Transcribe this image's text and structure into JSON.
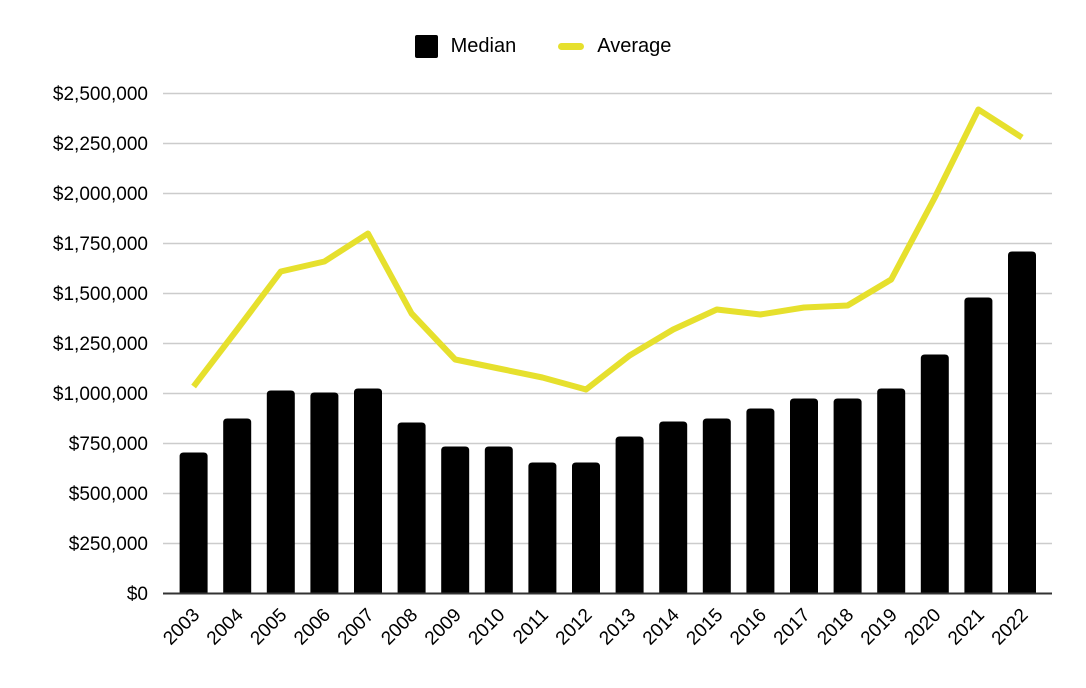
{
  "legend": {
    "items": [
      {
        "label": "Median",
        "marker": "square",
        "color": "#000000"
      },
      {
        "label": "Average",
        "marker": "dash",
        "color": "#e6e02d"
      }
    ]
  },
  "colors": {
    "bar": "#000000",
    "line": "#e6e02d",
    "grid": "#cccccc",
    "axis": "#333333",
    "text": "#000000",
    "background": "#ffffff"
  },
  "chart_data": {
    "type": "bar",
    "subtype": "combo-bar-line",
    "title": "",
    "xlabel": "",
    "ylabel": "",
    "ylim": [
      0,
      2500000
    ],
    "grid": true,
    "legend_position": "top-center",
    "categories": [
      "2003",
      "2004",
      "2005",
      "2006",
      "2007",
      "2008",
      "2009",
      "2010",
      "2011",
      "2012",
      "2013",
      "2014",
      "2015",
      "2016",
      "2017",
      "2018",
      "2019",
      "2020",
      "2021",
      "2022"
    ],
    "series": [
      {
        "name": "Median",
        "type": "bar",
        "color": "#000000",
        "values": [
          705000,
          875000,
          1015000,
          1005000,
          1025000,
          855000,
          735000,
          735000,
          655000,
          655000,
          785000,
          860000,
          875000,
          925000,
          975000,
          975000,
          1025000,
          1195000,
          1480000,
          1710000
        ]
      },
      {
        "name": "Average",
        "type": "line",
        "color": "#e6e02d",
        "values": [
          1035000,
          1320000,
          1610000,
          1660000,
          1800000,
          1400000,
          1170000,
          1125000,
          1080000,
          1020000,
          1190000,
          1320000,
          1420000,
          1395000,
          1430000,
          1440000,
          1570000,
          1980000,
          2420000,
          2280000
        ]
      }
    ],
    "y_ticks": [
      {
        "value": 0,
        "label": "$0"
      },
      {
        "value": 250000,
        "label": "$250,000"
      },
      {
        "value": 500000,
        "label": "$500,000"
      },
      {
        "value": 750000,
        "label": "$750,000"
      },
      {
        "value": 1000000,
        "label": "$1,000,000"
      },
      {
        "value": 1250000,
        "label": "$1,250,000"
      },
      {
        "value": 1500000,
        "label": "$1,500,000"
      },
      {
        "value": 1750000,
        "label": "$1,750,000"
      },
      {
        "value": 2000000,
        "label": "$2,000,000"
      },
      {
        "value": 2250000,
        "label": "$2,250,000"
      },
      {
        "value": 2500000,
        "label": "$2,500,000"
      }
    ]
  }
}
